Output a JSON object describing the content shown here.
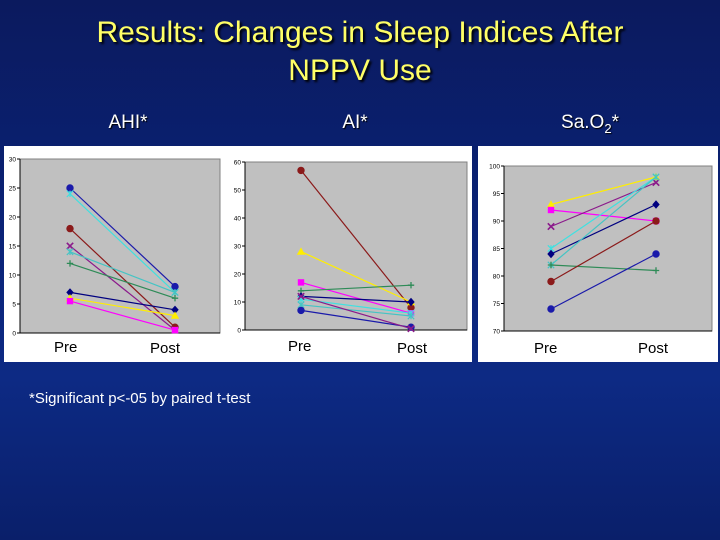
{
  "slide": {
    "title_line1": "Results: Changes in Sleep Indices After",
    "title_line2": "NPPV Use",
    "footnote": "*Significant p<-05 by paired t-test"
  },
  "chart_data": [
    {
      "type": "line",
      "title": "AHI*",
      "categories": [
        "Pre",
        "Post"
      ],
      "ylim": [
        0,
        30
      ],
      "yticks": [
        0,
        5,
        10,
        15,
        20,
        25,
        30
      ],
      "grid": false,
      "series": [
        {
          "values": [
            25,
            8
          ],
          "color": "#1a1aaa",
          "marker": "circle"
        },
        {
          "values": [
            24,
            7
          ],
          "color": "#40e0e0",
          "marker": "star"
        },
        {
          "values": [
            18,
            1
          ],
          "color": "#8b1a1a",
          "marker": "circle"
        },
        {
          "values": [
            15,
            0.5
          ],
          "color": "#8b1a8b",
          "marker": "x"
        },
        {
          "values": [
            14,
            7
          ],
          "color": "#44c4c4",
          "marker": "star"
        },
        {
          "values": [
            12,
            6
          ],
          "color": "#2e8b57",
          "marker": "plus"
        },
        {
          "values": [
            7,
            4
          ],
          "color": "#000080",
          "marker": "diamond"
        },
        {
          "values": [
            6,
            3
          ],
          "color": "#ffee00",
          "marker": "triangle"
        },
        {
          "values": [
            5.5,
            0.5
          ],
          "color": "#ff00ff",
          "marker": "square"
        }
      ]
    },
    {
      "type": "line",
      "title": "AI*",
      "categories": [
        "Pre",
        "Post"
      ],
      "ylim": [
        0,
        60
      ],
      "yticks": [
        0,
        10,
        20,
        30,
        40,
        50,
        60
      ],
      "grid": false,
      "series": [
        {
          "values": [
            57,
            8
          ],
          "color": "#8b1a1a",
          "marker": "circle"
        },
        {
          "values": [
            28,
            10
          ],
          "color": "#ffee00",
          "marker": "triangle"
        },
        {
          "values": [
            17,
            6
          ],
          "color": "#ff00ff",
          "marker": "square"
        },
        {
          "values": [
            14,
            16
          ],
          "color": "#2e8b57",
          "marker": "plus"
        },
        {
          "values": [
            12,
            10
          ],
          "color": "#000080",
          "marker": "diamond"
        },
        {
          "values": [
            11,
            6
          ],
          "color": "#40e0e0",
          "marker": "star"
        },
        {
          "values": [
            9,
            5
          ],
          "color": "#44c4c4",
          "marker": "star"
        },
        {
          "values": [
            7,
            1
          ],
          "color": "#1a1aaa",
          "marker": "circle"
        },
        {
          "values": [
            12,
            0.5
          ],
          "color": "#8b1a8b",
          "marker": "x"
        }
      ]
    },
    {
      "type": "line",
      "title_main": "Sa.O",
      "title_sub": "2",
      "title_tail": "*",
      "categories": [
        "Pre",
        "Post"
      ],
      "ylim": [
        70,
        100
      ],
      "yticks": [
        70,
        75,
        80,
        85,
        90,
        95,
        100
      ],
      "grid": false,
      "series": [
        {
          "values": [
            93,
            98
          ],
          "color": "#ffee00",
          "marker": "triangle"
        },
        {
          "values": [
            92,
            90
          ],
          "color": "#ff00ff",
          "marker": "square"
        },
        {
          "values": [
            89,
            97
          ],
          "color": "#8b1a8b",
          "marker": "x"
        },
        {
          "values": [
            85,
            98
          ],
          "color": "#40e0e0",
          "marker": "star"
        },
        {
          "values": [
            84,
            93
          ],
          "color": "#000080",
          "marker": "diamond"
        },
        {
          "values": [
            82,
            98
          ],
          "color": "#44c4c4",
          "marker": "star"
        },
        {
          "values": [
            82,
            81
          ],
          "color": "#2e8b57",
          "marker": "plus"
        },
        {
          "values": [
            79,
            90
          ],
          "color": "#8b1a1a",
          "marker": "circle"
        },
        {
          "values": [
            74,
            84
          ],
          "color": "#1a1aaa",
          "marker": "circle"
        }
      ]
    }
  ]
}
